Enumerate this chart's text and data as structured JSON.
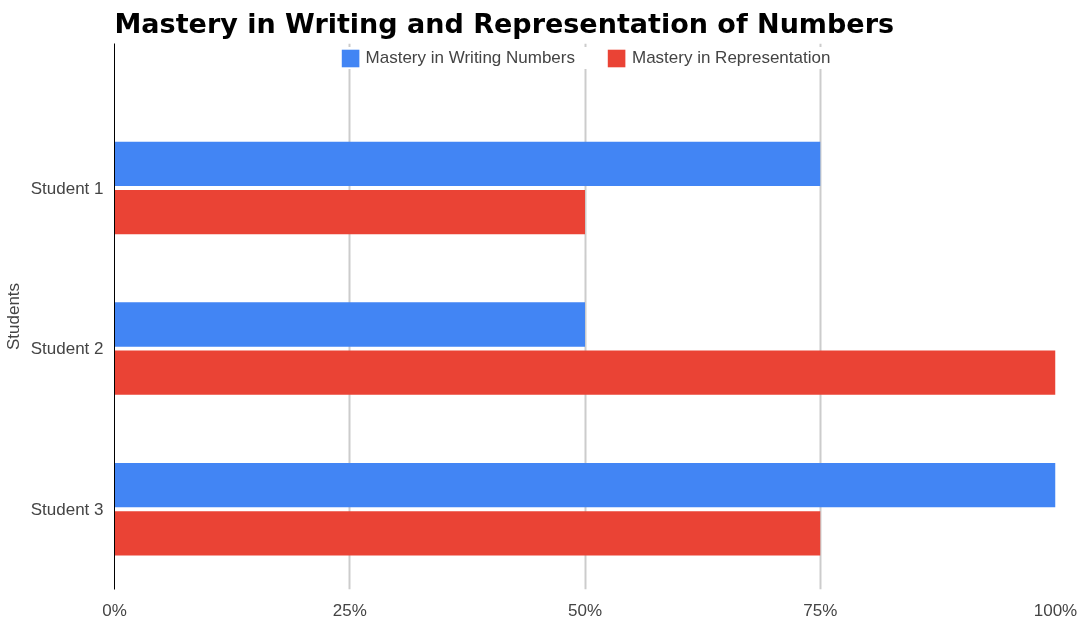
{
  "chart_data": {
    "type": "bar",
    "orientation": "horizontal",
    "title": "Mastery in Writing and Representation of Numbers",
    "ylabel": "Students",
    "categories": [
      "Student 1",
      "Student 2",
      "Student 3"
    ],
    "series": [
      {
        "name": "Mastery in Writing Numbers",
        "color": "#4285f4",
        "values": [
          75,
          50,
          100
        ]
      },
      {
        "name": "Mastery in Representation",
        "color": "#ea4335",
        "values": [
          50,
          100,
          75
        ]
      }
    ],
    "xlim": [
      0,
      100
    ],
    "xticks": [
      {
        "value": 0,
        "label": "0%"
      },
      {
        "value": 25,
        "label": "25%"
      },
      {
        "value": 50,
        "label": "50%"
      },
      {
        "value": 75,
        "label": "75%"
      },
      {
        "value": 100,
        "label": "100%"
      }
    ],
    "grid": "x",
    "legend": "top"
  }
}
